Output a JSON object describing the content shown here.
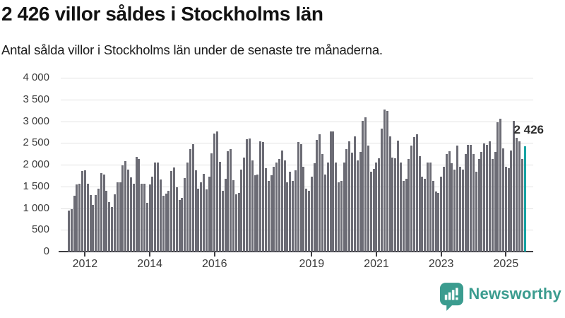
{
  "header": {
    "title": "2 426 villor såldes i Stockholms län",
    "subtitle": "Antal sålda villor i Stockholms län under de senaste tre månaderna."
  },
  "chart": {
    "y_tick_labels": [
      "0",
      "500",
      "1 000",
      "1 500",
      "2 000",
      "2 500",
      "3 000",
      "3 500",
      "4 000"
    ],
    "annotation_label": "2 426",
    "colors": {
      "bar": "#6c6c75",
      "highlight": "#17a3a3",
      "gridline": "#e1e1e1",
      "axis": "#3d3d42",
      "text": "#3a3a3a",
      "brand": "#3b9c8f"
    }
  },
  "chart_data": {
    "type": "bar",
    "title": "2 426 villor såldes i Stockholms län",
    "subtitle": "Antal sålda villor i Stockholms län under de senaste tre månaderna.",
    "ylabel": "",
    "xlabel": "",
    "ylim": [
      0,
      4000
    ],
    "y_tick_step": 500,
    "grid": true,
    "legend": "none",
    "frequency": "monthly",
    "start_period": "2011-07",
    "x_tick_labels": [
      "2012",
      "2014",
      "2016",
      "2019",
      "2021",
      "2023",
      "2025"
    ],
    "values": [
      950,
      975,
      1280,
      1540,
      1560,
      1860,
      1870,
      1560,
      1300,
      1075,
      1300,
      1440,
      1800,
      1780,
      1400,
      1140,
      1020,
      1320,
      1590,
      1600,
      1990,
      2080,
      1890,
      1705,
      1560,
      2180,
      2130,
      1560,
      1560,
      1125,
      1550,
      1730,
      2045,
      2045,
      1665,
      1290,
      1340,
      1395,
      1855,
      1940,
      1475,
      1180,
      1235,
      1695,
      2045,
      2360,
      2465,
      1870,
      1450,
      1600,
      1790,
      1430,
      1730,
      2260,
      2715,
      2770,
      2065,
      1400,
      1670,
      2315,
      2350,
      1645,
      1320,
      1345,
      1890,
      2160,
      2585,
      2605,
      2105,
      1755,
      1780,
      2530,
      2515,
      1915,
      1620,
      1755,
      1945,
      2050,
      2135,
      2325,
      2105,
      1590,
      1835,
      1620,
      1865,
      2515,
      2475,
      1945,
      1455,
      1400,
      1725,
      2025,
      2570,
      2695,
      2245,
      1780,
      2050,
      2760,
      2760,
      2050,
      1590,
      1620,
      2050,
      2350,
      2540,
      2270,
      2650,
      2105,
      2295,
      3005,
      3085,
      2435,
      1835,
      1900,
      2050,
      2150,
      2825,
      3275,
      3235,
      2650,
      2160,
      2150,
      2550,
      2050,
      1620,
      1670,
      2135,
      2435,
      2640,
      2705,
      2190,
      1725,
      1670,
      2050,
      2050,
      1620,
      1375,
      1345,
      1725,
      1945,
      2245,
      2315,
      2025,
      1890,
      2435,
      1945,
      1890,
      2245,
      2460,
      2460,
      2250,
      1835,
      2135,
      2300,
      2495,
      2460,
      2540,
      2130,
      2300,
      2980,
      3050,
      2380,
      1945,
      1915,
      2325,
      3015,
      2620,
      2540,
      2130,
      2426
    ],
    "highlight_index": 169,
    "highlight_value": 2426
  },
  "footer": {
    "brand": "Newsworthy"
  }
}
